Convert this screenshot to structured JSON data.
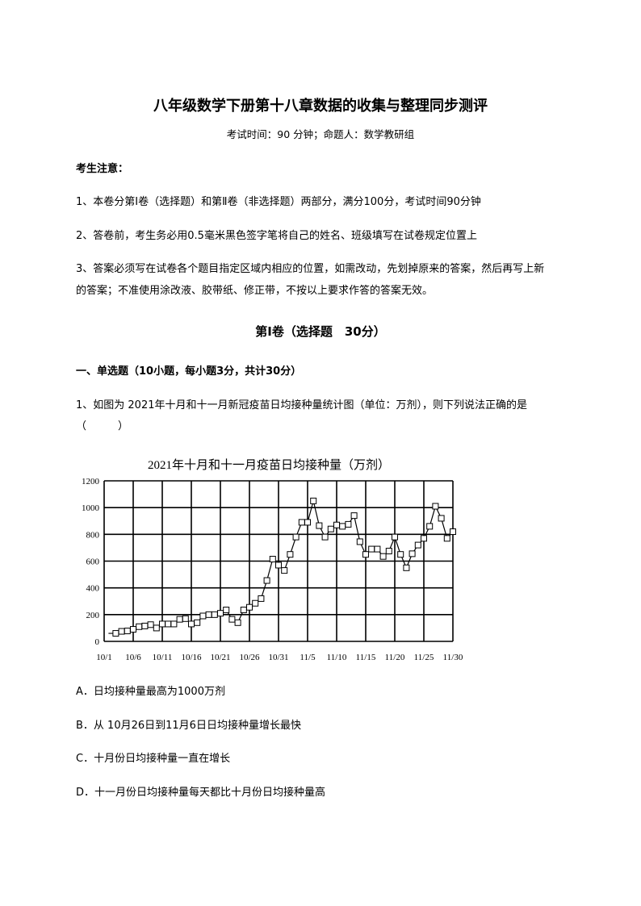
{
  "header": {
    "title": "八年级数学下册第十八章数据的收集与整理同步测评",
    "subtitle": "考试时间：90 分钟；命题人：数学教研组"
  },
  "notice": {
    "heading": "考生注意：",
    "items": [
      "1、本卷分第Ⅰ卷（选择题）和第Ⅱ卷（非选择题）两部分，满分100分，考试时间90分钟",
      "2、答卷前，考生务必用0.5毫米黑色签字笔将自己的姓名、班级填写在试卷规定位置上",
      "3、答案必须写在试卷各个题目指定区域内相应的位置，如需改动，先划掉原来的答案，然后再写上新",
      "的答案；不准使用涂改液、胶带纸、修正带，不按以上要求作答的答案无效。"
    ]
  },
  "section": {
    "title": "第Ⅰ卷（选择题　30分）",
    "part": "一、单选题（10小题，每小题3分，共计30分）"
  },
  "question1": {
    "stem": "1、如图为 2021年十月和十一月新冠疫苗日均接种量统计图（单位：万剂），则下列说法正确的是",
    "blank": "（　　　）",
    "options": [
      "A．日均接种量最高为1000万剂",
      "B．从 10月26日到11月6日日均接种量增长最快",
      "C．十月份日均接种量一直在增长",
      "D．十一月份日均接种量每天都比十月份日均接种量高"
    ]
  },
  "chart_data": {
    "type": "line",
    "title": "2021年十月和十一月疫苗日均接种量（万剂）",
    "xlabel": "",
    "ylabel": "",
    "ylim": [
      0,
      1200
    ],
    "yticks": [
      "0",
      "200",
      "400",
      "600",
      "800",
      "1000",
      "1200"
    ],
    "xticks": [
      "10/1",
      "10/6",
      "10/11",
      "10/16",
      "10/21",
      "10/26",
      "10/31",
      "11/5",
      "11/10",
      "11/15",
      "11/20",
      "11/25",
      "11/30"
    ],
    "grid": true,
    "marker": "square",
    "x": [
      "10/3",
      "10/4",
      "10/5",
      "10/6",
      "10/7",
      "10/8",
      "10/9",
      "10/10",
      "10/11",
      "10/12",
      "10/13",
      "10/14",
      "10/15",
      "10/16",
      "10/17",
      "10/18",
      "10/19",
      "10/20",
      "10/21",
      "10/22",
      "10/23",
      "10/24",
      "10/25",
      "10/26",
      "10/27",
      "10/28",
      "10/29",
      "10/30",
      "10/31",
      "11/1",
      "11/2",
      "11/3",
      "11/4",
      "11/5",
      "11/6",
      "11/7",
      "11/8",
      "11/9",
      "11/10",
      "11/11",
      "11/12",
      "11/13",
      "11/14",
      "11/15",
      "11/16",
      "11/17",
      "11/18",
      "11/19",
      "11/20",
      "11/21",
      "11/22",
      "11/23",
      "11/24",
      "11/25",
      "11/26",
      "11/27",
      "11/28",
      "11/29",
      "11/30"
    ],
    "values": [
      60,
      75,
      78,
      90,
      110,
      115,
      125,
      100,
      130,
      130,
      130,
      165,
      170,
      130,
      140,
      190,
      200,
      200,
      210,
      235,
      165,
      140,
      235,
      255,
      285,
      320,
      455,
      615,
      570,
      530,
      650,
      780,
      890,
      890,
      1050,
      865,
      780,
      840,
      870,
      860,
      875,
      940,
      745,
      650,
      690,
      690,
      635,
      675,
      780,
      650,
      550,
      655,
      720,
      770,
      860,
      1010,
      920,
      770,
      820
    ]
  }
}
